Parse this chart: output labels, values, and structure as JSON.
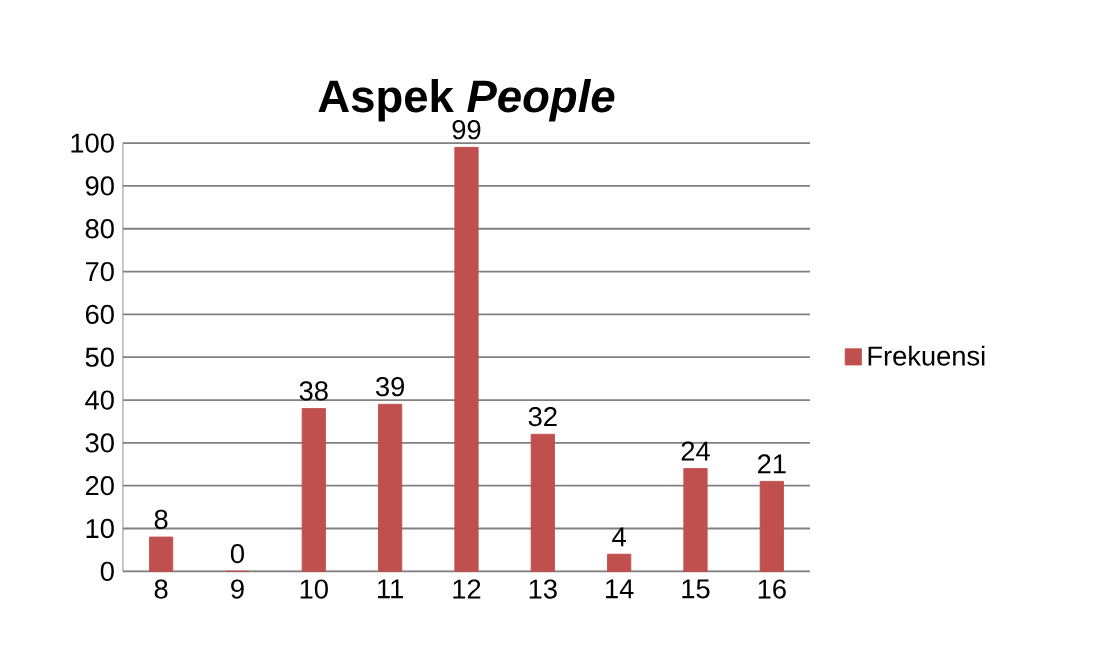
{
  "chart_data": {
    "type": "bar",
    "title": "Aspek *People*",
    "categories": [
      "8",
      "9",
      "10",
      "11",
      "12",
      "13",
      "14",
      "15",
      "16"
    ],
    "series": [
      {
        "name": "Frekuensi",
        "color": "#c0504d",
        "values": [
          8,
          0,
          38,
          39,
          99,
          32,
          4,
          24,
          21
        ]
      }
    ],
    "ylim": [
      0,
      100
    ],
    "yticks": [
      0,
      10,
      20,
      30,
      40,
      50,
      60,
      70,
      80,
      90,
      100
    ],
    "grid": "y",
    "legend": "right",
    "data_labels": true
  }
}
